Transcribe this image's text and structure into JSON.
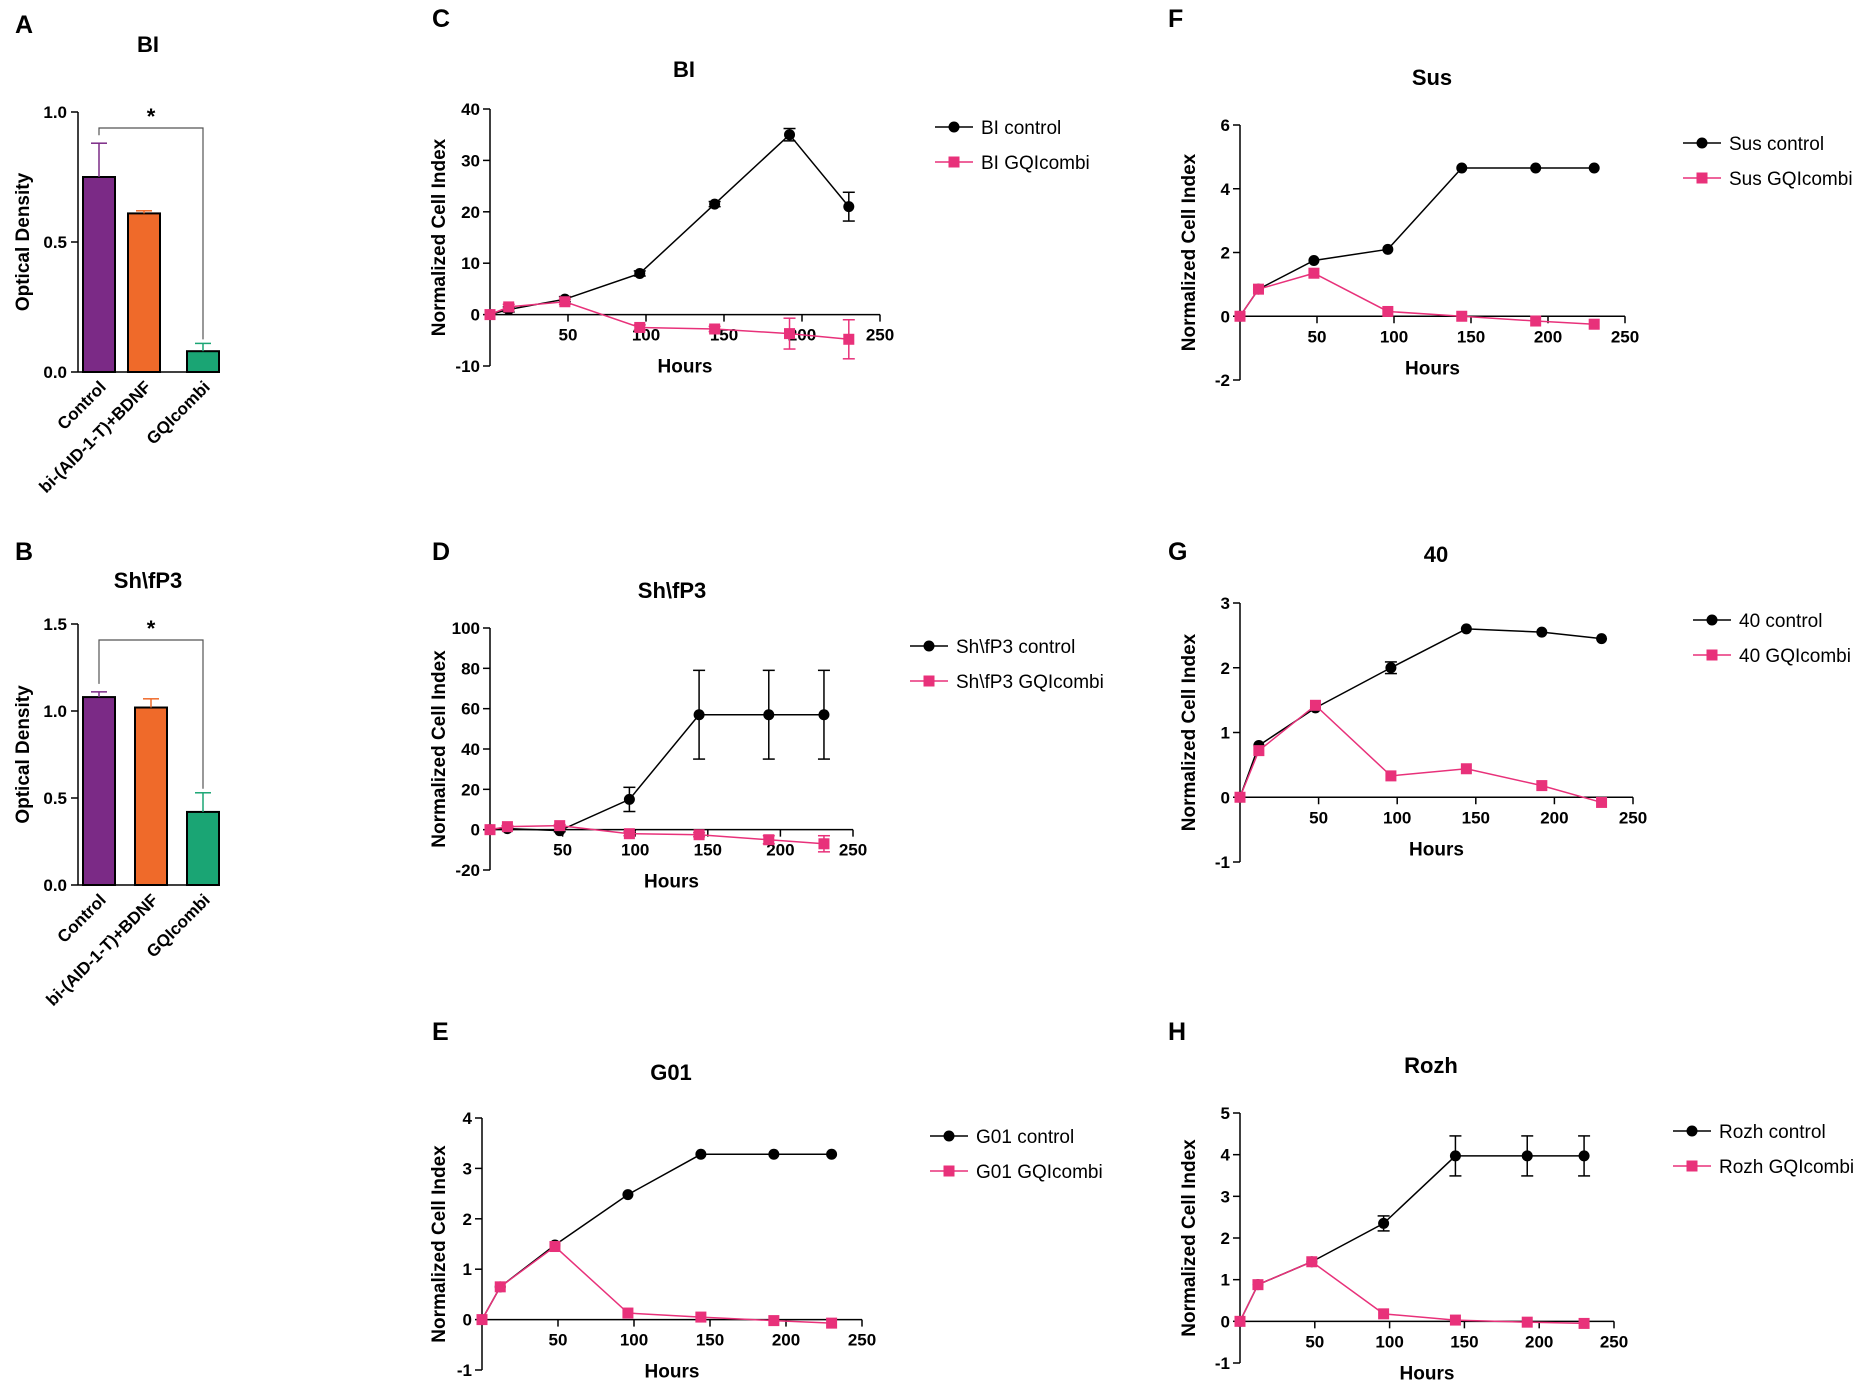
{
  "chart_data": [
    {
      "panel": "A",
      "type": "bar",
      "title": "BI",
      "categories": [
        "Control",
        "bi-(AID-1-T)+BDNF",
        "GQIcombi"
      ],
      "values": [
        0.75,
        0.61,
        0.08
      ],
      "errors": [
        0.13,
        0.01,
        0.03
      ],
      "colors": [
        "#7b2a86",
        "#ef6a2a",
        "#1aa574"
      ],
      "ylabel": "Optical Density",
      "ylim": [
        0,
        1.0
      ],
      "yticks": [
        0.0,
        0.5,
        1.0
      ],
      "ytick_labels": [
        "0.0",
        "0.5",
        "1.0"
      ],
      "significance": "*"
    },
    {
      "panel": "B",
      "type": "bar",
      "title": "Sh\\fP3",
      "categories": [
        "Control",
        "bi-(AID-1-T)+BDNF",
        "GQIcombi"
      ],
      "values": [
        1.08,
        1.02,
        0.42
      ],
      "errors": [
        0.03,
        0.05,
        0.11
      ],
      "colors": [
        "#7b2a86",
        "#ef6a2a",
        "#1aa574"
      ],
      "ylabel": "Optical Density",
      "ylim": [
        0,
        1.5
      ],
      "yticks": [
        0.0,
        0.5,
        1.0,
        1.5
      ],
      "ytick_labels": [
        "0.0",
        "0.5",
        "1.0",
        "1.5"
      ],
      "significance": "*"
    },
    {
      "panel": "C",
      "type": "line",
      "title": "BI",
      "xlabel": "Hours",
      "ylabel": "Normalized Cell Index",
      "xlim": [
        0,
        250
      ],
      "ylim": [
        -10,
        40
      ],
      "xticks": [
        50,
        100,
        150,
        200,
        250
      ],
      "yticks": [
        -10,
        0,
        10,
        20,
        30,
        40
      ],
      "x": [
        0,
        12,
        48,
        96,
        144,
        192,
        230
      ],
      "series": [
        {
          "name": "BI control",
          "marker": "circle",
          "color": "#000000",
          "values": [
            0,
            1,
            3,
            8,
            21.5,
            35,
            21
          ],
          "errors": [
            0,
            0.5,
            0.5,
            0.5,
            0.5,
            1.2,
            2.8
          ]
        },
        {
          "name": "BI GQIcombi",
          "marker": "square",
          "color": "#e8317a",
          "values": [
            0,
            1.5,
            2.5,
            -2.5,
            -2.8,
            -3.7,
            -4.8
          ],
          "errors": [
            0,
            0.5,
            0.5,
            0.5,
            0.5,
            3,
            3.8
          ]
        }
      ]
    },
    {
      "panel": "D",
      "type": "line",
      "title": "Sh\\fP3",
      "xlabel": "Hours",
      "ylabel": "Normalized Cell Index",
      "xlim": [
        0,
        250
      ],
      "ylim": [
        -20,
        100
      ],
      "xticks": [
        50,
        100,
        150,
        200,
        250
      ],
      "yticks": [
        -20,
        0,
        20,
        40,
        60,
        80,
        100
      ],
      "x": [
        0,
        12,
        48,
        96,
        144,
        192,
        230
      ],
      "series": [
        {
          "name": "Sh\\fP3 control",
          "marker": "circle",
          "color": "#000000",
          "values": [
            0,
            0.5,
            -0.5,
            15,
            57,
            57,
            57
          ],
          "errors": [
            0,
            0.5,
            0.5,
            6,
            22,
            22,
            22
          ]
        },
        {
          "name": "Sh\\fP3 GQIcombi",
          "marker": "square",
          "color": "#e8317a",
          "values": [
            0,
            1.5,
            2,
            -2,
            -2.5,
            -5,
            -7
          ],
          "errors": [
            0,
            0.5,
            0.5,
            1,
            1,
            2,
            4
          ]
        }
      ]
    },
    {
      "panel": "E",
      "type": "line",
      "title": "G01",
      "xlabel": "Hours",
      "ylabel": "Normalized Cell Index",
      "xlim": [
        0,
        250
      ],
      "ylim": [
        -1,
        4
      ],
      "xticks": [
        50,
        100,
        150,
        200,
        250
      ],
      "yticks": [
        -1,
        0,
        1,
        2,
        3,
        4
      ],
      "x": [
        0,
        12,
        48,
        96,
        144,
        192,
        230
      ],
      "series": [
        {
          "name": "G01 control",
          "marker": "circle",
          "color": "#000000",
          "values": [
            0,
            0.65,
            1.48,
            2.48,
            3.28,
            3.28,
            3.28
          ],
          "errors": [
            0,
            0,
            0,
            0,
            0,
            0,
            0
          ]
        },
        {
          "name": "G01 GQIcombi",
          "marker": "square",
          "color": "#e8317a",
          "values": [
            0,
            0.65,
            1.45,
            0.13,
            0.05,
            -0.02,
            -0.07
          ],
          "errors": [
            0,
            0,
            0,
            0,
            0,
            0,
            0
          ]
        }
      ]
    },
    {
      "panel": "F",
      "type": "line",
      "title": "Sus",
      "xlabel": "Hours",
      "ylabel": "Normalized Cell Index",
      "xlim": [
        0,
        250
      ],
      "ylim": [
        -2,
        6
      ],
      "xticks": [
        50,
        100,
        150,
        200,
        250
      ],
      "yticks": [
        -2,
        0,
        2,
        4,
        6
      ],
      "x": [
        0,
        12,
        48,
        96,
        144,
        192,
        230
      ],
      "series": [
        {
          "name": "Sus control",
          "marker": "circle",
          "color": "#000000",
          "values": [
            0,
            0.85,
            1.75,
            2.1,
            4.65,
            4.65,
            4.65
          ],
          "errors": [
            0,
            0,
            0,
            0,
            0,
            0,
            0
          ]
        },
        {
          "name": "Sus GQIcombi",
          "marker": "square",
          "color": "#e8317a",
          "values": [
            0,
            0.85,
            1.35,
            0.15,
            0.0,
            -0.15,
            -0.25
          ],
          "errors": [
            0,
            0,
            0,
            0,
            0,
            0,
            0
          ]
        }
      ]
    },
    {
      "panel": "G",
      "type": "line",
      "title": "40",
      "xlabel": "Hours",
      "ylabel": "Normalized Cell Index",
      "xlim": [
        0,
        250
      ],
      "ylim": [
        -1,
        3
      ],
      "xticks": [
        50,
        100,
        150,
        200,
        250
      ],
      "yticks": [
        -1,
        0,
        1,
        2,
        3
      ],
      "x": [
        0,
        12,
        48,
        96,
        144,
        192,
        230
      ],
      "series": [
        {
          "name": "40 control",
          "marker": "circle",
          "color": "#000000",
          "values": [
            0,
            0.8,
            1.38,
            2.0,
            2.6,
            2.55,
            2.45
          ],
          "errors": [
            0,
            0,
            0,
            0.09,
            0,
            0,
            0
          ]
        },
        {
          "name": "40 GQIcombi",
          "marker": "square",
          "color": "#e8317a",
          "values": [
            0,
            0.72,
            1.42,
            0.33,
            0.44,
            0.18,
            -0.08
          ],
          "errors": [
            0,
            0,
            0,
            0,
            0,
            0,
            0
          ]
        }
      ]
    },
    {
      "panel": "H",
      "type": "line",
      "title": "Rozh",
      "xlabel": "Hours",
      "ylabel": "Normalized Cell Index",
      "xlim": [
        0,
        250
      ],
      "ylim": [
        -1,
        5
      ],
      "xticks": [
        50,
        100,
        150,
        200,
        250
      ],
      "yticks": [
        -1,
        0,
        1,
        2,
        3,
        4,
        5
      ],
      "x": [
        0,
        12,
        48,
        96,
        144,
        192,
        230
      ],
      "series": [
        {
          "name": "Rozh control",
          "marker": "circle",
          "color": "#000000",
          "values": [
            0,
            0.88,
            1.43,
            2.35,
            3.97,
            3.97,
            3.97
          ],
          "errors": [
            0,
            0,
            0,
            0.18,
            0.48,
            0.48,
            0.48
          ]
        },
        {
          "name": "Rozh GQIcombi",
          "marker": "square",
          "color": "#e8317a",
          "values": [
            0,
            0.88,
            1.43,
            0.18,
            0.03,
            -0.02,
            -0.05
          ],
          "errors": [
            0,
            0,
            0,
            0,
            0,
            0,
            0
          ]
        }
      ]
    }
  ]
}
